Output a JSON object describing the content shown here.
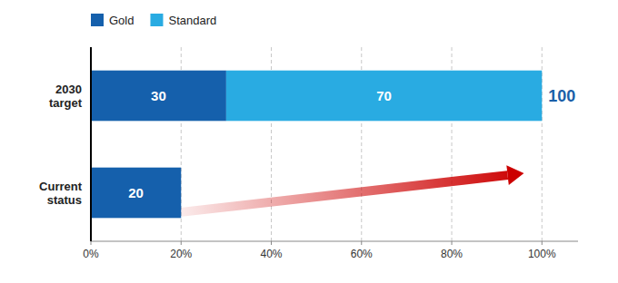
{
  "chart_data": {
    "type": "bar",
    "orientation": "horizontal",
    "stacked": true,
    "data_labels": true,
    "grid": true,
    "legend": "top-left",
    "categories": [
      "2030\ntarget",
      "Current\nstatus"
    ],
    "series": [
      {
        "name": "Gold",
        "color": "#1560ac",
        "values": [
          30,
          20
        ]
      },
      {
        "name": "Standard",
        "color": "#29abe2",
        "values": [
          70,
          0
        ]
      }
    ],
    "xlim": [
      0,
      108
    ],
    "xticks": [
      {
        "value": 0,
        "label": "0%"
      },
      {
        "value": 20,
        "label": "20%"
      },
      {
        "value": 40,
        "label": "40%"
      },
      {
        "value": 60,
        "label": "60%"
      },
      {
        "value": 80,
        "label": "80%"
      },
      {
        "value": 100,
        "label": "100%"
      }
    ],
    "annotations": [
      {
        "text": "100",
        "value": 100,
        "category": "2030\ntarget",
        "color": "#1a5fa8"
      }
    ],
    "arrow": {
      "from": 20,
      "to": 96,
      "category": "Current\nstatus",
      "color": "#cc0000"
    }
  }
}
